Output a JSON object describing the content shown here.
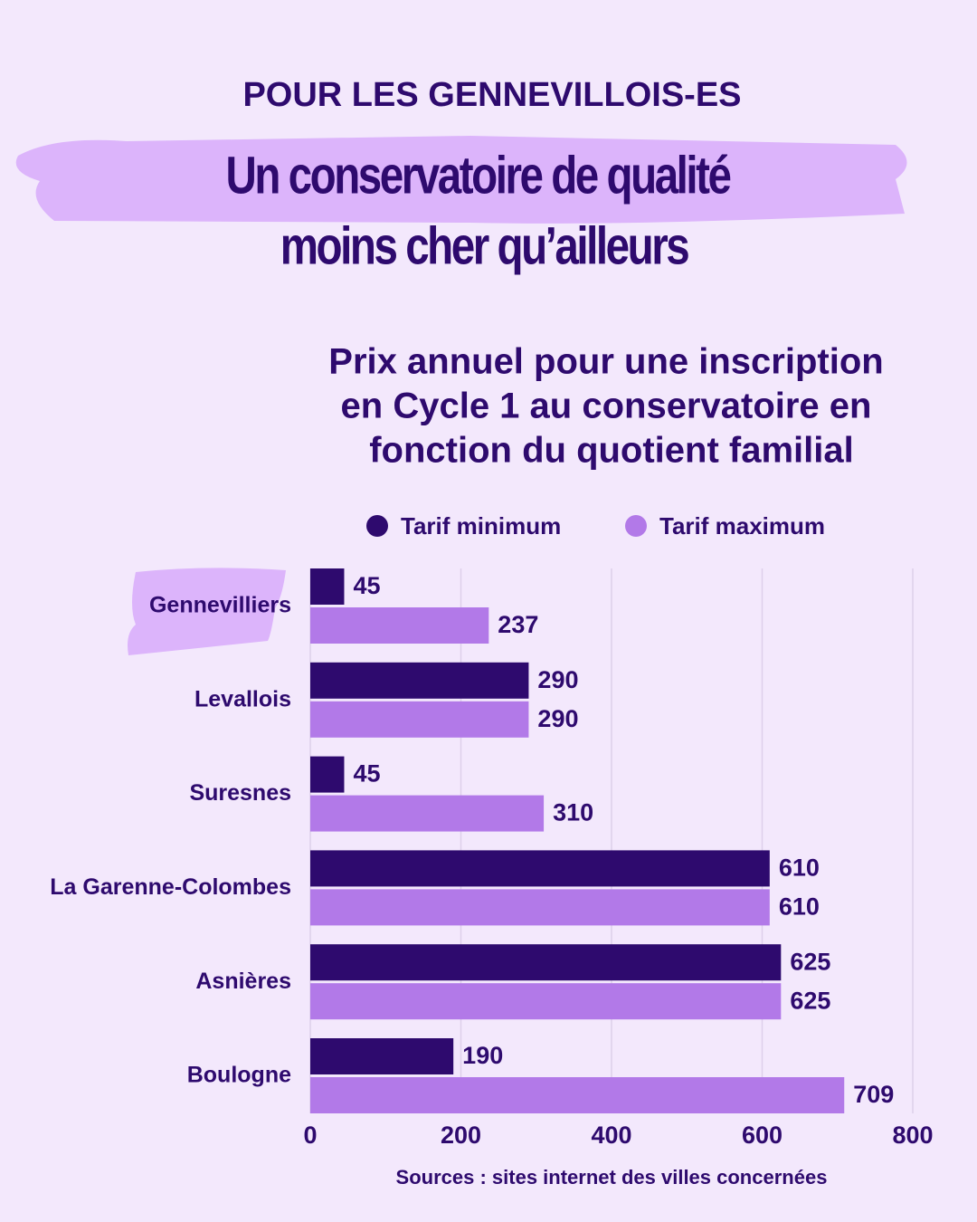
{
  "header": {
    "kicker": "POUR LES GENNEVILLOIS-ES",
    "headline": [
      "Un conservatoire de qualité",
      "moins cher qu’ailleurs"
    ]
  },
  "chart_data": {
    "type": "bar",
    "orientation": "horizontal",
    "title": [
      "Prix annuel pour une inscription",
      "en Cycle 1 au conservatoire en",
      "fonction du quotient familial"
    ],
    "categories": [
      "Gennevilliers",
      "Levallois",
      "Suresnes",
      "La Garenne-Colombes",
      "Asnières",
      "Boulogne"
    ],
    "series": [
      {
        "name": "Tarif minimum",
        "color": "#2e0a6e",
        "values": [
          45,
          290,
          45,
          610,
          625,
          190
        ]
      },
      {
        "name": "Tarif maximum",
        "color": "#b279e8",
        "values": [
          237,
          290,
          310,
          610,
          625,
          709
        ]
      }
    ],
    "xlim": [
      0,
      800
    ],
    "xticks": [
      0,
      200,
      400,
      600,
      800
    ],
    "grid": true,
    "legend": "top",
    "source": "Sources : sites internet des villes concernées"
  }
}
